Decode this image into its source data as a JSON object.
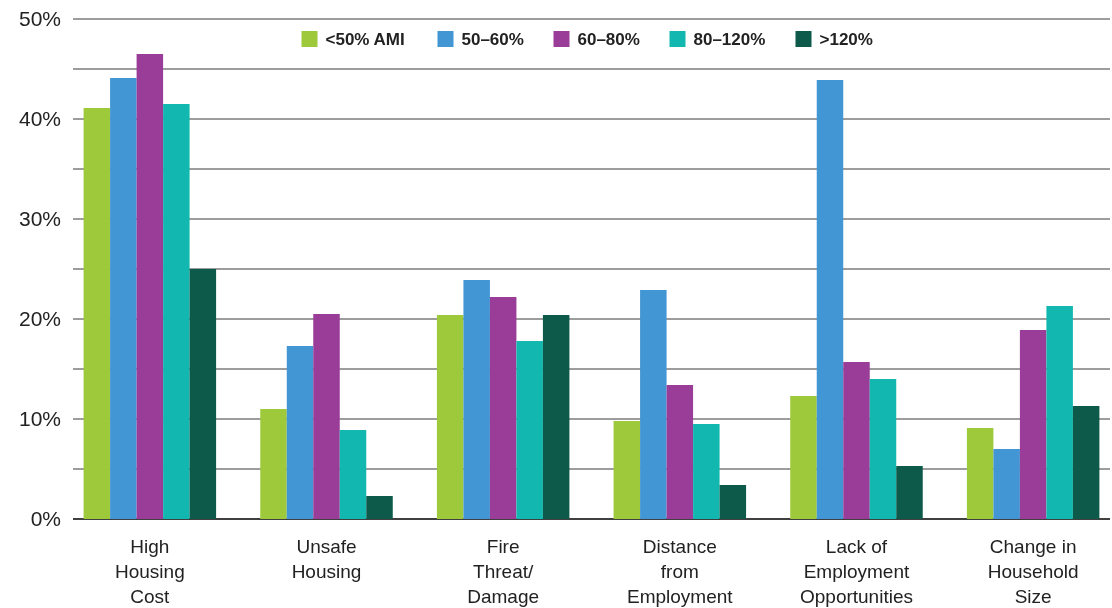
{
  "chart_data": {
    "type": "bar",
    "categories": [
      "High Housing Cost",
      "Unsafe Housing",
      "Fire Threat/Damage",
      "Distance from Employment",
      "Lack of Employment Opportunities",
      "Change in Household Size"
    ],
    "series": [
      {
        "name": "<50% AMI",
        "color": "#9dc93b",
        "values": [
          41.1,
          11,
          20.4,
          9.8,
          12.3,
          9.1
        ]
      },
      {
        "name": "50–60%",
        "color": "#4396d4",
        "values": [
          44.1,
          17.3,
          23.9,
          22.9,
          43.9,
          7
        ]
      },
      {
        "name": "60–80%",
        "color": "#9a3d98",
        "values": [
          46.5,
          20.5,
          22.2,
          13.4,
          15.7,
          18.9
        ]
      },
      {
        "name": "80–120%",
        "color": "#12b8b0",
        "values": [
          41.5,
          8.9,
          17.8,
          9.5,
          14,
          21.3
        ]
      },
      {
        "name": ">120%",
        "color": "#0d5a4a",
        "values": [
          25,
          2.3,
          20.4,
          3.4,
          5.3,
          11.3
        ]
      }
    ],
    "ylim": [
      0,
      50
    ],
    "yticks": [
      {
        "value": 0,
        "label": "0%"
      },
      {
        "value": 5,
        "label": null
      },
      {
        "value": 10,
        "label": "10%"
      },
      {
        "value": 15,
        "label": null
      },
      {
        "value": 20,
        "label": "20%"
      },
      {
        "value": 25,
        "label": null
      },
      {
        "value": 30,
        "label": "30%"
      },
      {
        "value": 35,
        "label": null
      },
      {
        "value": 40,
        "label": "40%"
      },
      {
        "value": 45,
        "label": null
      },
      {
        "value": 50,
        "label": "50%"
      }
    ],
    "grid": "y",
    "legend": "top"
  }
}
